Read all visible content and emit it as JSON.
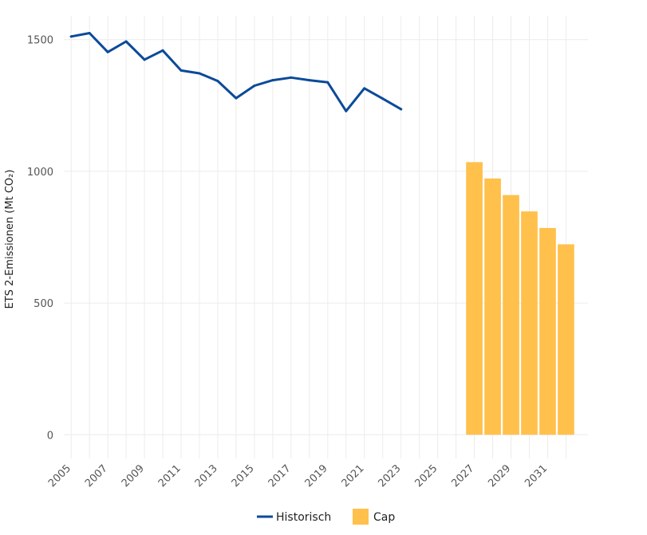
{
  "chart_data": {
    "type": "line+bar",
    "ylabel": "ETS 2-Emissionen (Mt CO₂)",
    "xlabel": "",
    "xlim": [
      2004.6,
      2033.2
    ],
    "ylim": [
      -90,
      1590
    ],
    "yticks": [
      0,
      500,
      1000,
      1500
    ],
    "xticks": [
      2005,
      2007,
      2009,
      2011,
      2013,
      2015,
      2017,
      2019,
      2021,
      2023,
      2025,
      2027,
      2029,
      2031
    ],
    "grid": true,
    "legend_position": "bottom",
    "series": [
      {
        "name": "Historisch",
        "kind": "line",
        "color": "#0b4a99",
        "x": [
          2005,
          2006,
          2007,
          2008,
          2009,
          2010,
          2011,
          2012,
          2013,
          2014,
          2015,
          2016,
          2017,
          2018,
          2019,
          2020,
          2021,
          2022,
          2023
        ],
        "y": [
          1512,
          1525,
          1453,
          1493,
          1424,
          1459,
          1383,
          1372,
          1343,
          1278,
          1325,
          1346,
          1356,
          1346,
          1338,
          1229,
          1315,
          1276,
          1236
        ]
      },
      {
        "name": "Cap",
        "kind": "bar",
        "color": "#ffc04c",
        "x": [
          2027,
          2028,
          2029,
          2030,
          2031,
          2032
        ],
        "y": [
          1035,
          973,
          910,
          848,
          785,
          723
        ]
      }
    ]
  }
}
